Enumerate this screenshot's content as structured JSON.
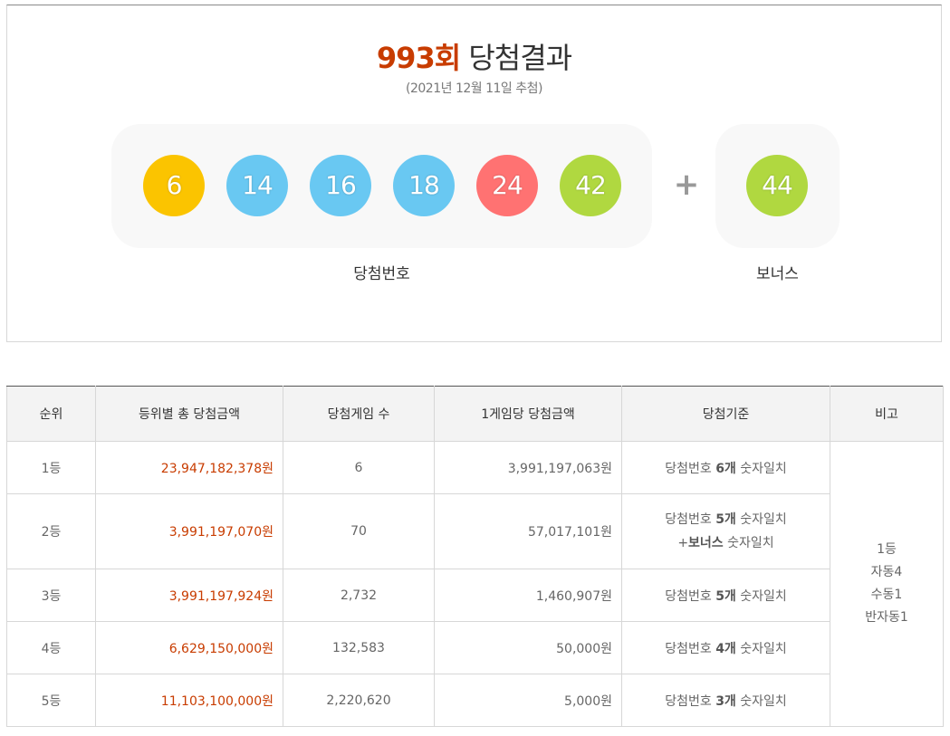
{
  "header": {
    "round": "993회",
    "title_suffix": "당첨결과",
    "draw_date": "(2021년 12월 11일 추첨)"
  },
  "winning": {
    "label": "당첨번호",
    "balls": [
      {
        "number": "6",
        "color": "#fbc400"
      },
      {
        "number": "14",
        "color": "#69c8f2"
      },
      {
        "number": "16",
        "color": "#69c8f2"
      },
      {
        "number": "18",
        "color": "#69c8f2"
      },
      {
        "number": "24",
        "color": "#ff7272"
      },
      {
        "number": "42",
        "color": "#b0d840"
      }
    ],
    "plus": "+"
  },
  "bonus": {
    "label": "보너스",
    "ball": {
      "number": "44",
      "color": "#b0d840"
    }
  },
  "table": {
    "headers": [
      "순위",
      "등위별 총 당첨금액",
      "당첨게임 수",
      "1게임당 당첨금액",
      "당첨기준",
      "비고"
    ],
    "rows": [
      {
        "rank": "1등",
        "total": "23,947,182,378원",
        "games": "6",
        "per_game": "3,991,197,063원",
        "crit_prefix": "당첨번호 ",
        "crit_bold": "6개",
        "crit_suffix": " 숫자일치"
      },
      {
        "rank": "2등",
        "total": "3,991,197,070원",
        "games": "70",
        "per_game": "57,017,101원",
        "crit_prefix": "당첨번호 ",
        "crit_bold": "5개",
        "crit_suffix": " 숫자일치",
        "crit2_prefix": "+",
        "crit2_bold": "보너스",
        "crit2_suffix": " 숫자일치"
      },
      {
        "rank": "3등",
        "total": "3,991,197,924원",
        "games": "2,732",
        "per_game": "1,460,907원",
        "crit_prefix": "당첨번호 ",
        "crit_bold": "5개",
        "crit_suffix": " 숫자일치"
      },
      {
        "rank": "4등",
        "total": "6,629,150,000원",
        "games": "132,583",
        "per_game": "50,000원",
        "crit_prefix": "당첨번호 ",
        "crit_bold": "4개",
        "crit_suffix": " 숫자일치"
      },
      {
        "rank": "5등",
        "total": "11,103,100,000원",
        "games": "2,220,620",
        "per_game": "5,000원",
        "crit_prefix": "당첨번호 ",
        "crit_bold": "3개",
        "crit_suffix": " 숫자일치"
      }
    ],
    "note": [
      "1등",
      "자동4",
      "수동1",
      "반자동1"
    ]
  }
}
